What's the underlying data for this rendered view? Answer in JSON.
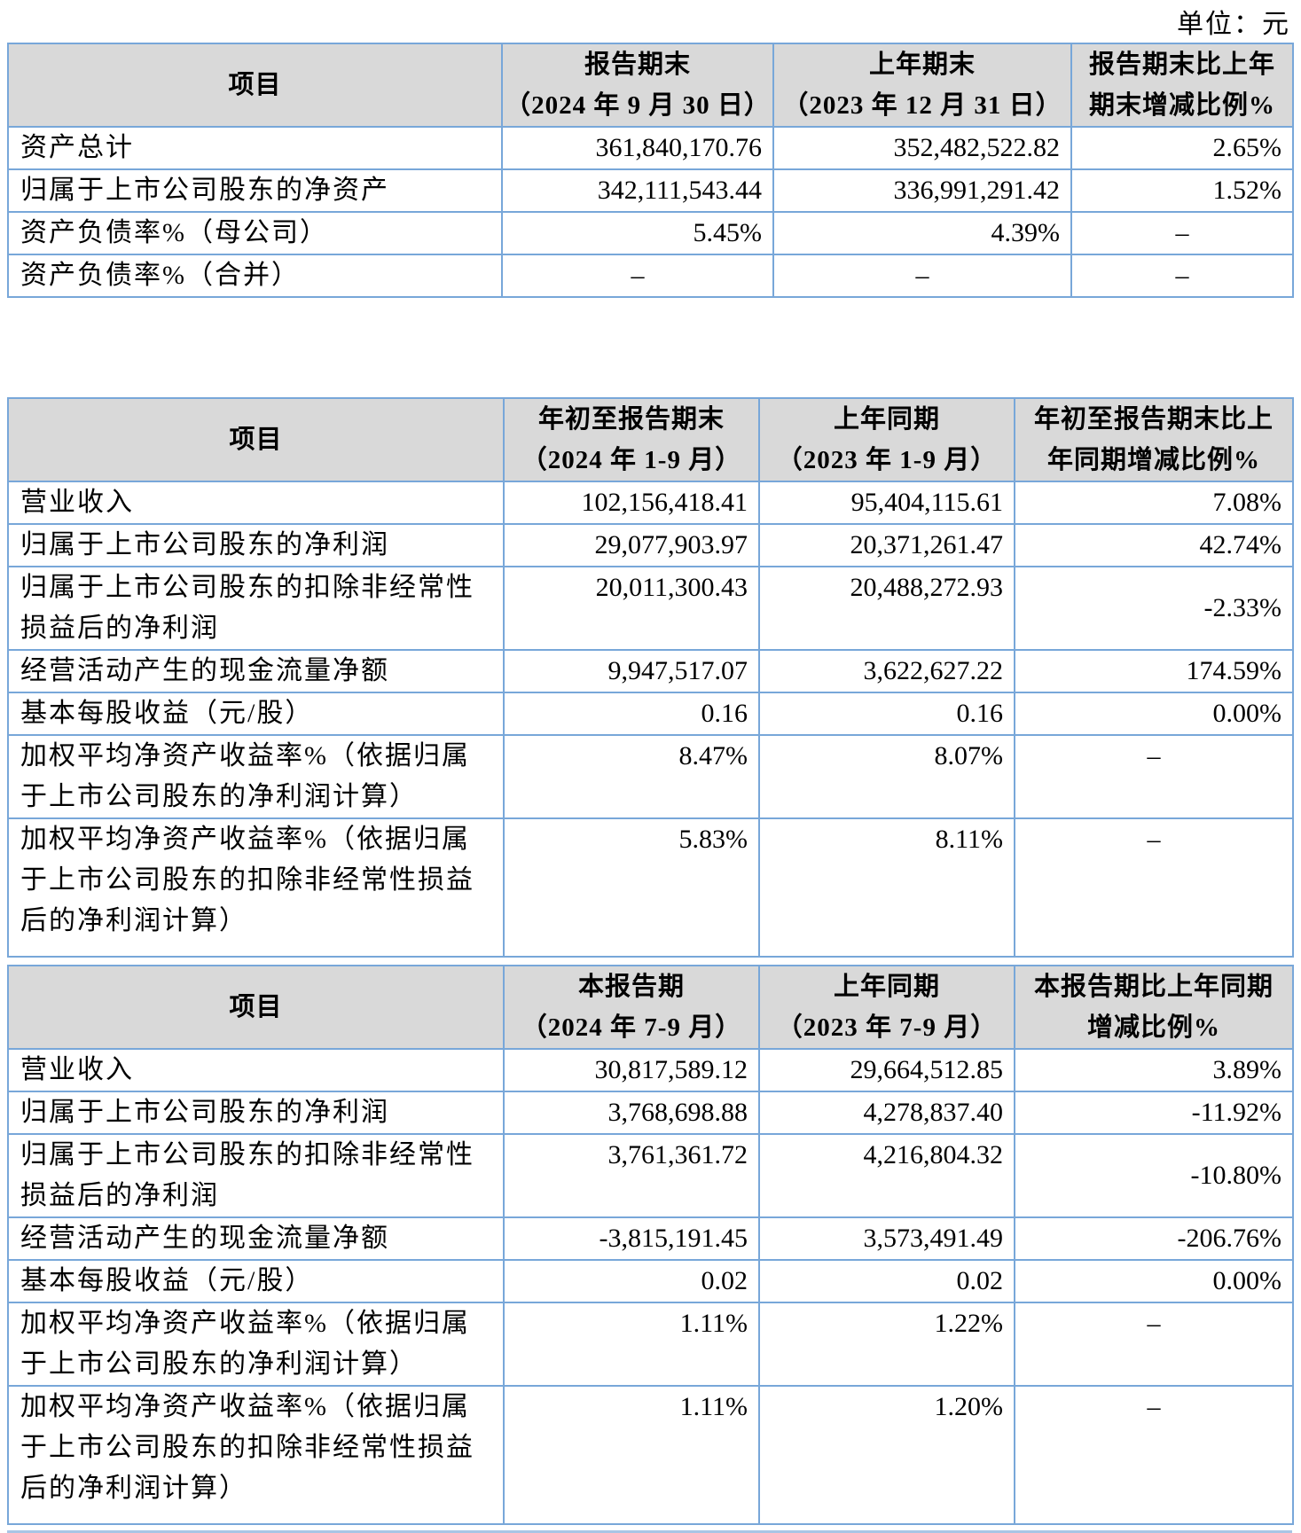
{
  "unit_label": "单位：元",
  "colors": {
    "table_border": "#78A7D9",
    "header_bg": "#D9D9D9",
    "page_bg": "#FFFFFF",
    "text": "#000000"
  },
  "tables": [
    {
      "header": {
        "item": "项目",
        "cols": [
          {
            "line1": "报告期末",
            "line2": "（2024 年 9 月 30 日）"
          },
          {
            "line1": "上年期末",
            "line2": "（2023 年 12 月 31 日）"
          },
          {
            "line1": "报告期末比上年",
            "line2": "期末增减比例%"
          }
        ]
      },
      "rows": [
        {
          "label": "资产总计",
          "values": [
            "361,840,170.76",
            "352,482,522.82",
            "2.65%"
          ]
        },
        {
          "label": "归属于上市公司股东的净资产",
          "values": [
            "342,111,543.44",
            "336,991,291.42",
            "1.52%"
          ]
        },
        {
          "label": "资产负债率%（母公司）",
          "values": [
            "5.45%",
            "4.39%",
            "–"
          ]
        },
        {
          "label": "资产负债率%（合并）",
          "values": [
            "–",
            "–",
            "–"
          ]
        }
      ]
    },
    {
      "header": {
        "item": "项目",
        "cols": [
          {
            "line1": "年初至报告期末",
            "line2": "（2024 年 1-9 月）"
          },
          {
            "line1": "上年同期",
            "line2": "（2023 年 1-9 月）"
          },
          {
            "line1": "年初至报告期末比上",
            "line2": "年同期增减比例%"
          }
        ]
      },
      "rows": [
        {
          "label": "营业收入",
          "values": [
            "102,156,418.41",
            "95,404,115.61",
            "7.08%"
          ]
        },
        {
          "label": "归属于上市公司股东的净利润",
          "values": [
            "29,077,903.97",
            "20,371,261.47",
            "42.74%"
          ]
        },
        {
          "label": "归属于上市公司股东的扣除非经常性损益后的净利润",
          "values": [
            "20,011,300.43",
            "20,488,272.93",
            "-2.33%"
          ],
          "ratio_middle": true
        },
        {
          "label": "经营活动产生的现金流量净额",
          "values": [
            "9,947,517.07",
            "3,622,627.22",
            "174.59%"
          ]
        },
        {
          "label": "基本每股收益（元/股）",
          "values": [
            "0.16",
            "0.16",
            "0.00%"
          ]
        },
        {
          "label": "加权平均净资产收益率%（依据归属于上市公司股东的净利润计算）",
          "values": [
            "8.47%",
            "8.07%",
            "–"
          ]
        },
        {
          "label": "加权平均净资产收益率%（依据归属于上市公司股东的扣除非经常性损益后的净利润计算）",
          "values": [
            "5.83%",
            "8.11%",
            "–"
          ],
          "pad_bottom": true
        }
      ]
    },
    {
      "header": {
        "item": "项目",
        "cols": [
          {
            "line1": "本报告期",
            "line2": "（2024 年 7-9 月）"
          },
          {
            "line1": "上年同期",
            "line2": "（2023 年 7-9 月）"
          },
          {
            "line1": "本报告期比上年同期",
            "line2": "增减比例%"
          }
        ]
      },
      "rows": [
        {
          "label": "营业收入",
          "values": [
            "30,817,589.12",
            "29,664,512.85",
            "3.89%"
          ]
        },
        {
          "label": "归属于上市公司股东的净利润",
          "values": [
            "3,768,698.88",
            "4,278,837.40",
            "-11.92%"
          ]
        },
        {
          "label": "归属于上市公司股东的扣除非经常性损益后的净利润",
          "values": [
            "3,761,361.72",
            "4,216,804.32",
            "-10.80%"
          ],
          "ratio_middle": true
        },
        {
          "label": "经营活动产生的现金流量净额",
          "values": [
            "-3,815,191.45",
            "3,573,491.49",
            "-206.76%"
          ]
        },
        {
          "label": "基本每股收益（元/股）",
          "values": [
            "0.02",
            "0.02",
            "0.00%"
          ]
        },
        {
          "label": "加权平均净资产收益率%（依据归属于上市公司股东的净利润计算）",
          "values": [
            "1.11%",
            "1.22%",
            "–"
          ]
        },
        {
          "label": "加权平均净资产收益率%（依据归属于上市公司股东的扣除非经常性损益后的净利润计算）",
          "values": [
            "1.11%",
            "1.20%",
            "–"
          ],
          "pad_bottom": true
        }
      ]
    }
  ]
}
